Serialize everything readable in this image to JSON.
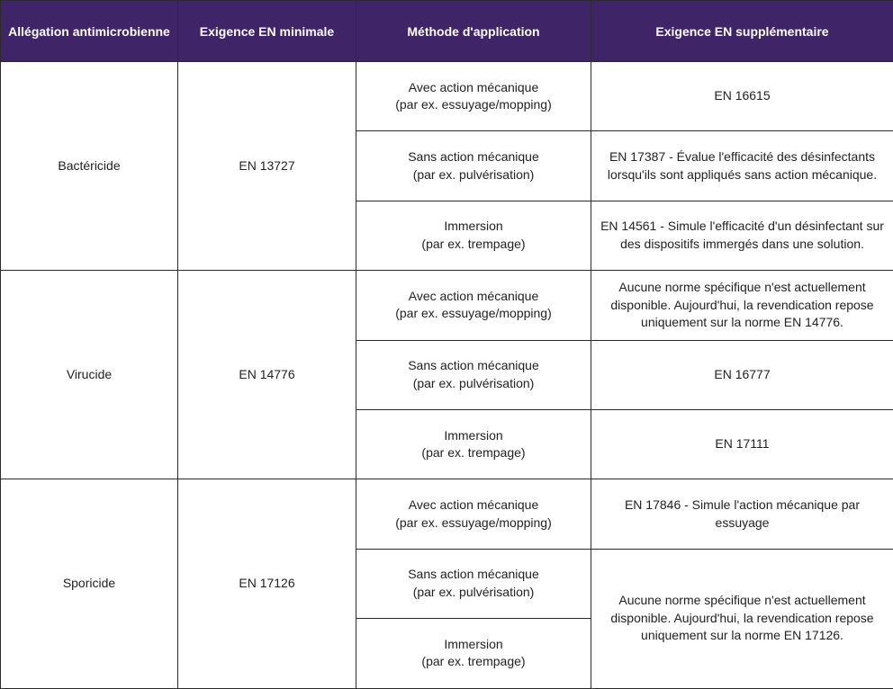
{
  "headers": [
    "Allégation antimicrobienne",
    "Exigence EN minimale",
    "Méthode d'application",
    "Exigence EN supplémentaire"
  ],
  "methods": {
    "mech": [
      "Avec action mécanique",
      "(par ex. essuyage/mopping)"
    ],
    "spray": [
      "Sans action mécanique",
      "(par ex. pulvérisation)"
    ],
    "immersion": [
      "Immersion",
      "(par ex. trempage)"
    ]
  },
  "groups": [
    {
      "claim": "Bactéricide",
      "min": "EN 13727",
      "extra": [
        "EN 16615",
        "EN 17387 - Évalue l'efficacité des désinfectants lorsqu'ils sont appliqués sans action mécanique.",
        "EN 14561 - Simule l'efficacité d'un désinfectant sur des dispositifs immergés dans une solution."
      ]
    },
    {
      "claim": "Virucide",
      "min": "EN 14776",
      "extra": [
        "Aucune norme spécifique n'est actuellement disponible. Aujourd'hui, la revendication repose uniquement sur la norme EN 14776.",
        "EN 16777",
        "EN 17111"
      ]
    },
    {
      "claim": "Sporicide",
      "min": "EN 17126",
      "extra": [
        "EN 17846 - Simule l'action mécanique par essuyage",
        "Aucune norme spécifique n'est actuellement disponible. Aujourd'hui, la revendication repose uniquement sur la norme EN 17126."
      ]
    }
  ],
  "colors": {
    "header_bg": "#3f2568",
    "border": "#2b2b2b"
  }
}
